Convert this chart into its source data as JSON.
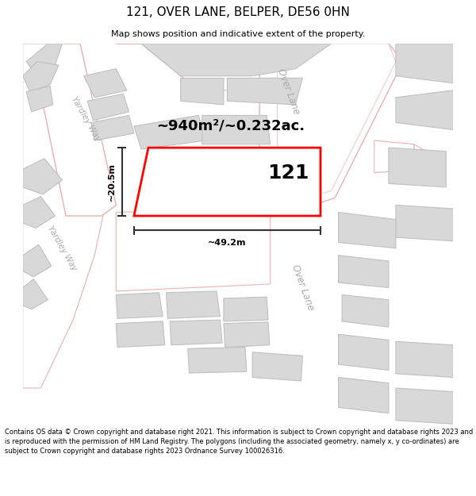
{
  "title": "121, OVER LANE, BELPER, DE56 0HN",
  "subtitle": "Map shows position and indicative extent of the property.",
  "footer": "Contains OS data © Crown copyright and database right 2021. This information is subject to Crown copyright and database rights 2023 and is reproduced with the permission of HM Land Registry. The polygons (including the associated geometry, namely x, y co-ordinates) are subject to Crown copyright and database rights 2023 Ordnance Survey 100026316.",
  "bg_color": "#ffffff",
  "map_bg": "#ffffff",
  "road_outline_color": "#e8b0b0",
  "highlight_color": "#ff0000",
  "building_fill": "#d8d8d8",
  "building_edge": "#c0c0c0",
  "road_label_color": "#aaaaaa",
  "dim_line_color": "#333333",
  "text_color": "#000000",
  "property_label": "121",
  "area_text": "~940m²/~0.232ac.",
  "width_label": "~49.2m",
  "height_label": "~20.5m",
  "road_label_1": "Over Lane",
  "road_label_2": "Yardley Way"
}
